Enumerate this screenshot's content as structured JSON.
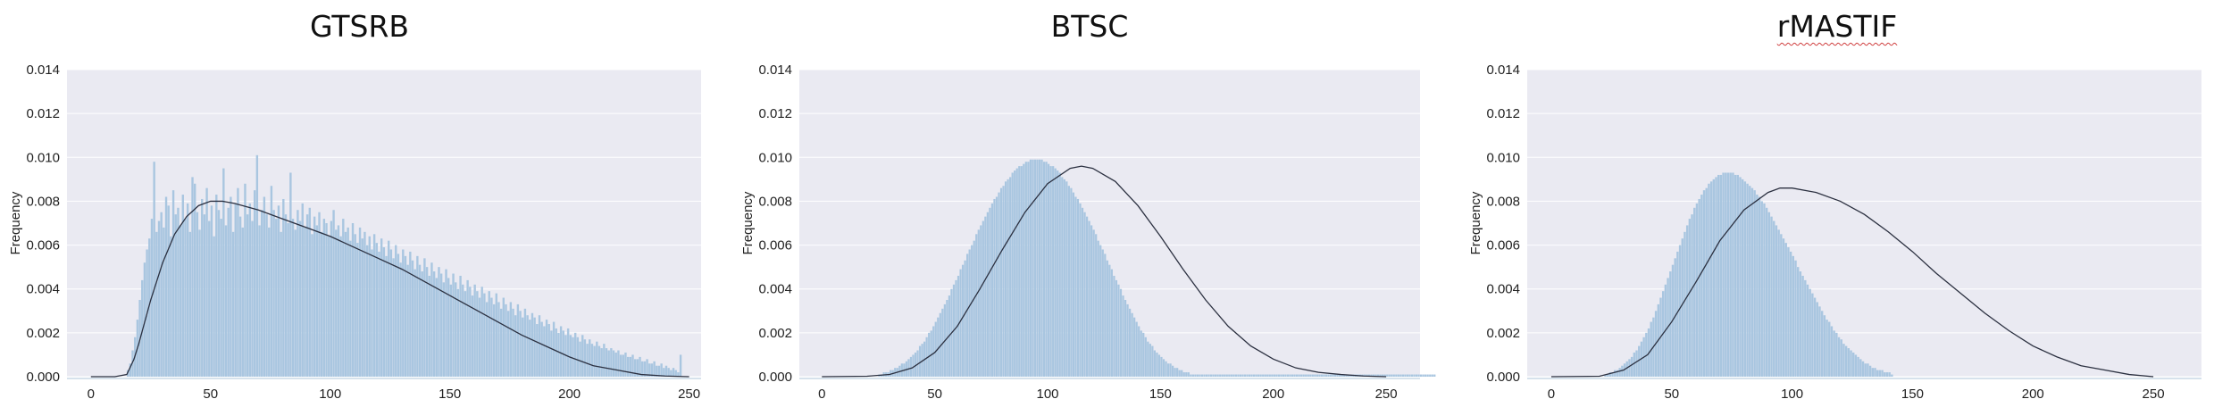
{
  "chart_data": [
    {
      "type": "bar",
      "title": "GTSRB",
      "ylabel": "Frequency",
      "xlabel": "",
      "xlim": [
        -10,
        255
      ],
      "ylim": [
        0,
        0.014
      ],
      "xticks": [
        0,
        50,
        100,
        150,
        200,
        250
      ],
      "yticks": [
        0,
        0.002,
        0.004,
        0.006,
        0.008,
        0.01,
        0.012,
        0.014
      ],
      "ytick_labels": [
        "0.000",
        "0.002",
        "0.004",
        "0.006",
        "0.008",
        "0.010",
        "0.012",
        "0.014"
      ],
      "grid": true,
      "legend": "none",
      "bar_color": "#a9c6e0",
      "curve_color": "#2b3040",
      "background": "#eaeaf2",
      "title_style": "plain",
      "histogram": {
        "bin_start": 15,
        "bin_width": 1,
        "values": [
          0.0003,
          0.0006,
          0.0012,
          0.0018,
          0.0026,
          0.0035,
          0.0044,
          0.0052,
          0.0058,
          0.0063,
          0.0072,
          0.0098,
          0.0066,
          0.0071,
          0.0075,
          0.0068,
          0.0082,
          0.0078,
          0.0064,
          0.0085,
          0.0074,
          0.0077,
          0.0069,
          0.0083,
          0.0072,
          0.0079,
          0.0066,
          0.0091,
          0.0088,
          0.0075,
          0.0067,
          0.0081,
          0.0074,
          0.0086,
          0.0071,
          0.0078,
          0.0064,
          0.0083,
          0.0076,
          0.0072,
          0.0095,
          0.0069,
          0.0077,
          0.0082,
          0.0066,
          0.0079,
          0.0086,
          0.0073,
          0.0068,
          0.0088,
          0.0074,
          0.0079,
          0.0071,
          0.0085,
          0.0101,
          0.0069,
          0.0076,
          0.0082,
          0.0074,
          0.0068,
          0.0087,
          0.0076,
          0.0072,
          0.0078,
          0.0066,
          0.0081,
          0.0074,
          0.007,
          0.0093,
          0.0072,
          0.0067,
          0.0076,
          0.0071,
          0.0079,
          0.0068,
          0.0074,
          0.0077,
          0.0065,
          0.0073,
          0.0069,
          0.0075,
          0.0066,
          0.0072,
          0.007,
          0.0064,
          0.0071,
          0.0076,
          0.0067,
          0.0069,
          0.0064,
          0.0072,
          0.0066,
          0.0068,
          0.0062,
          0.007,
          0.0065,
          0.0061,
          0.0068,
          0.0063,
          0.0066,
          0.006,
          0.0064,
          0.0058,
          0.0065,
          0.0061,
          0.0057,
          0.0063,
          0.0059,
          0.0055,
          0.0062,
          0.0058,
          0.0054,
          0.006,
          0.0056,
          0.0052,
          0.0058,
          0.0055,
          0.0051,
          0.0057,
          0.0053,
          0.0049,
          0.0055,
          0.0051,
          0.0048,
          0.0054,
          0.005,
          0.0046,
          0.0052,
          0.0048,
          0.0045,
          0.005,
          0.0047,
          0.0043,
          0.0049,
          0.0045,
          0.0042,
          0.0047,
          0.0043,
          0.004,
          0.0046,
          0.0042,
          0.0039,
          0.0044,
          0.0041,
          0.0037,
          0.0042,
          0.0039,
          0.0036,
          0.0041,
          0.0038,
          0.0034,
          0.0039,
          0.0036,
          0.0033,
          0.0038,
          0.0034,
          0.0031,
          0.0036,
          0.0033,
          0.003,
          0.0034,
          0.0031,
          0.0028,
          0.0033,
          0.003,
          0.0027,
          0.0031,
          0.0028,
          0.0026,
          0.0029,
          0.0027,
          0.0024,
          0.0028,
          0.0025,
          0.0023,
          0.0026,
          0.0024,
          0.0021,
          0.0025,
          0.0022,
          0.002,
          0.0023,
          0.0021,
          0.0019,
          0.0022,
          0.0019,
          0.0018,
          0.002,
          0.0018,
          0.0016,
          0.0019,
          0.0017,
          0.0015,
          0.0017,
          0.0015,
          0.0014,
          0.0016,
          0.0014,
          0.0013,
          0.0015,
          0.0013,
          0.0012,
          0.0013,
          0.0012,
          0.0011,
          0.0012,
          0.001,
          0.001,
          0.0011,
          0.0009,
          0.0009,
          0.001,
          0.0008,
          0.0008,
          0.0009,
          0.0007,
          0.0007,
          0.0008,
          0.0006,
          0.0006,
          0.0007,
          0.0005,
          0.0005,
          0.0006,
          0.0004,
          0.0005,
          0.0004,
          0.0003,
          0.0004,
          0.0003,
          0.0002,
          0.001
        ]
      },
      "density_curve": {
        "x": [
          0,
          10,
          15,
          18,
          20,
          25,
          30,
          35,
          40,
          45,
          50,
          55,
          60,
          70,
          80,
          90,
          100,
          110,
          120,
          130,
          140,
          150,
          160,
          170,
          180,
          190,
          200,
          210,
          220,
          230,
          240,
          250
        ],
        "y": [
          0,
          0,
          0.0001,
          0.0008,
          0.0015,
          0.0035,
          0.0052,
          0.0065,
          0.0073,
          0.0078,
          0.008,
          0.008,
          0.0079,
          0.0076,
          0.0072,
          0.0068,
          0.0064,
          0.0059,
          0.0054,
          0.0049,
          0.0043,
          0.0037,
          0.0031,
          0.0025,
          0.0019,
          0.0014,
          0.0009,
          0.0005,
          0.0003,
          0.0001,
          3e-05,
          0
        ]
      }
    },
    {
      "type": "bar",
      "title": "BTSC",
      "ylabel": "Frequency",
      "xlabel": "",
      "xlim": [
        -10,
        265
      ],
      "ylim": [
        0,
        0.014
      ],
      "xticks": [
        0,
        50,
        100,
        150,
        200,
        250
      ],
      "yticks": [
        0,
        0.002,
        0.004,
        0.006,
        0.008,
        0.01,
        0.012,
        0.014
      ],
      "ytick_labels": [
        "0.000",
        "0.002",
        "0.004",
        "0.006",
        "0.008",
        "0.010",
        "0.012",
        "0.014"
      ],
      "grid": true,
      "legend": "none",
      "bar_color": "#a9c6e0",
      "curve_color": "#2b3040",
      "background": "#eaeaf2",
      "title_style": "plain",
      "histogram": {
        "bin_start": 25,
        "bin_width": 1,
        "values": [
          0.0001,
          0.0001,
          0.0002,
          0.0002,
          0.0002,
          0.0003,
          0.0003,
          0.0004,
          0.0004,
          0.0005,
          0.0006,
          0.0006,
          0.0007,
          0.0008,
          0.0009,
          0.001,
          0.0011,
          0.0012,
          0.0014,
          0.0015,
          0.0016,
          0.0018,
          0.002,
          0.0021,
          0.0023,
          0.0025,
          0.0027,
          0.0029,
          0.0031,
          0.0033,
          0.0035,
          0.0037,
          0.004,
          0.0042,
          0.0044,
          0.0046,
          0.0049,
          0.0051,
          0.0053,
          0.0056,
          0.0058,
          0.006,
          0.0062,
          0.0065,
          0.0067,
          0.0069,
          0.0071,
          0.0073,
          0.0075,
          0.0077,
          0.0079,
          0.0081,
          0.0082,
          0.0084,
          0.0086,
          0.0087,
          0.0089,
          0.009,
          0.0091,
          0.0093,
          0.0094,
          0.0095,
          0.0096,
          0.0096,
          0.0097,
          0.0098,
          0.0098,
          0.0099,
          0.0099,
          0.0099,
          0.0099,
          0.0099,
          0.0099,
          0.0098,
          0.0098,
          0.0097,
          0.0096,
          0.0096,
          0.0095,
          0.0094,
          0.0093,
          0.0091,
          0.009,
          0.0089,
          0.0087,
          0.0086,
          0.0084,
          0.0082,
          0.0081,
          0.0079,
          0.0077,
          0.0075,
          0.0073,
          0.0071,
          0.0069,
          0.0067,
          0.0065,
          0.0062,
          0.006,
          0.0058,
          0.0056,
          0.0053,
          0.0051,
          0.0049,
          0.0046,
          0.0044,
          0.0042,
          0.004,
          0.0037,
          0.0035,
          0.0033,
          0.0031,
          0.0029,
          0.0027,
          0.0025,
          0.0023,
          0.0021,
          0.002,
          0.0018,
          0.0016,
          0.0015,
          0.0014,
          0.0012,
          0.0011,
          0.001,
          0.0009,
          0.0008,
          0.0007,
          0.0006,
          0.0006,
          0.0005,
          0.0004,
          0.0004,
          0.0003,
          0.0003,
          0.0002,
          0.0002,
          0.0002,
          0.0001,
          0.0001,
          0.0001,
          0.0001,
          0.0001,
          0.0001,
          0.0001,
          0.0001,
          0.0001,
          0.0001,
          0.0001,
          0.0001,
          0.0001,
          0.0001,
          0.0001,
          0.0001,
          0.0001,
          0.0001,
          0.0001,
          0.0001,
          0.0001,
          0.0001,
          0.0001,
          0.0001,
          0.0001,
          0.0001,
          0.0001,
          0.0001,
          0.0001,
          0.0001,
          0.0001,
          0.0001,
          0.0001,
          0.0001,
          0.0001,
          0.0001,
          0.0001,
          0.0001,
          0.0001,
          0.0001,
          0.0001,
          0.0001,
          0.0001,
          0.0001,
          0.0001,
          0.0001,
          0.0001,
          0.0001,
          0.0001,
          0.0001,
          0.0001,
          0.0001,
          0.0001,
          0.0001,
          0.0001,
          0.0001,
          0.0001,
          0.0001,
          0.0001,
          0.0001,
          0.0001,
          0.0001,
          0.0001,
          0.0001,
          0.0001,
          0.0001,
          0.0001,
          0.0001,
          0.0001,
          0.0001,
          0.0001,
          0.0001,
          0.0001,
          0.0001,
          0.0001,
          0.0001,
          0.0001,
          0.0001,
          0.0001,
          0.0001,
          0.0001,
          0.0001,
          0.0001,
          0.0001,
          0.0001,
          0.0001,
          0.0001,
          0.0001,
          0.0001,
          0.0001,
          0.0001,
          0.0001,
          0.0001,
          0.0001,
          0.0001,
          0.0001,
          0.0001,
          0.0001,
          0.0001,
          0.0001,
          0.0001,
          0.0001,
          0.0001,
          0.0001,
          0.0001,
          0.0001,
          0.0001,
          0.0001,
          0.0001
        ]
      },
      "density_curve": {
        "x": [
          0,
          20,
          30,
          40,
          50,
          60,
          70,
          80,
          90,
          100,
          110,
          115,
          120,
          130,
          140,
          150,
          160,
          170,
          180,
          190,
          200,
          210,
          220,
          230,
          240,
          250
        ],
        "y": [
          0,
          2e-05,
          0.0001,
          0.0004,
          0.0011,
          0.0023,
          0.004,
          0.0058,
          0.0075,
          0.0088,
          0.0095,
          0.0096,
          0.0095,
          0.0089,
          0.0078,
          0.0064,
          0.0049,
          0.0035,
          0.0023,
          0.0014,
          0.0008,
          0.0004,
          0.0002,
          0.0001,
          3e-05,
          0
        ]
      }
    },
    {
      "type": "bar",
      "title": "rMASTIF",
      "ylabel": "Frequency",
      "xlabel": "",
      "xlim": [
        -10,
        270
      ],
      "ylim": [
        0,
        0.014
      ],
      "xticks": [
        0,
        50,
        100,
        150,
        200,
        250
      ],
      "yticks": [
        0,
        0.002,
        0.004,
        0.006,
        0.008,
        0.01,
        0.012,
        0.014
      ],
      "ytick_labels": [
        "0.000",
        "0.002",
        "0.004",
        "0.006",
        "0.008",
        "0.010",
        "0.012",
        "0.014"
      ],
      "grid": true,
      "legend": "none",
      "bar_color": "#a9c6e0",
      "curve_color": "#2b3040",
      "background": "#eaeaf2",
      "title_style": "spellcheck-underlined",
      "histogram": {
        "bin_start": 22,
        "bin_width": 1,
        "values": [
          0.0001,
          0.0001,
          0.0002,
          0.0002,
          0.0003,
          0.0003,
          0.0004,
          0.0005,
          0.0006,
          0.0007,
          0.0008,
          0.0009,
          0.0011,
          0.0012,
          0.0014,
          0.0016,
          0.0018,
          0.002,
          0.0022,
          0.0025,
          0.0027,
          0.003,
          0.0033,
          0.0036,
          0.0039,
          0.0042,
          0.0045,
          0.0048,
          0.0051,
          0.0054,
          0.0057,
          0.006,
          0.0063,
          0.0066,
          0.0069,
          0.0072,
          0.0074,
          0.0077,
          0.0079,
          0.0081,
          0.0083,
          0.0085,
          0.0086,
          0.0088,
          0.0089,
          0.009,
          0.0091,
          0.0092,
          0.0092,
          0.0093,
          0.0093,
          0.0093,
          0.0093,
          0.0093,
          0.0092,
          0.0092,
          0.0091,
          0.009,
          0.0089,
          0.0088,
          0.0087,
          0.0086,
          0.0085,
          0.0083,
          0.0082,
          0.008,
          0.0079,
          0.0077,
          0.0075,
          0.0073,
          0.0071,
          0.0069,
          0.0067,
          0.0065,
          0.0063,
          0.0061,
          0.0059,
          0.0057,
          0.0055,
          0.0053,
          0.005,
          0.0048,
          0.0046,
          0.0044,
          0.0042,
          0.004,
          0.0038,
          0.0036,
          0.0034,
          0.0032,
          0.003,
          0.0028,
          0.0026,
          0.0025,
          0.0023,
          0.0021,
          0.002,
          0.0018,
          0.0017,
          0.0015,
          0.0014,
          0.0013,
          0.0012,
          0.0011,
          0.001,
          0.0009,
          0.0008,
          0.0007,
          0.0006,
          0.0006,
          0.0005,
          0.0004,
          0.0004,
          0.0003,
          0.0003,
          0.0003,
          0.0002,
          0.0002,
          0.0002,
          0.0001
        ]
      },
      "density_curve": {
        "x": [
          0,
          20,
          30,
          40,
          50,
          60,
          70,
          80,
          90,
          95,
          100,
          110,
          120,
          130,
          140,
          150,
          160,
          170,
          180,
          190,
          200,
          210,
          220,
          230,
          240,
          250
        ],
        "y": [
          0,
          2e-05,
          0.0003,
          0.001,
          0.0025,
          0.0043,
          0.0062,
          0.0076,
          0.0084,
          0.0086,
          0.0086,
          0.0084,
          0.008,
          0.0074,
          0.0066,
          0.0057,
          0.0047,
          0.0038,
          0.0029,
          0.0021,
          0.0014,
          0.0009,
          0.0005,
          0.0003,
          0.0001,
          0
        ]
      }
    }
  ]
}
